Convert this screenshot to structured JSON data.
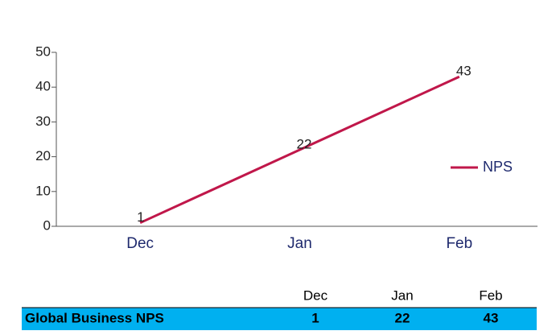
{
  "chart_data": {
    "type": "line",
    "categories": [
      "Dec",
      "Jan",
      "Feb"
    ],
    "series": [
      {
        "name": "NPS",
        "color": "#c0174a",
        "values": [
          1,
          22,
          43
        ]
      }
    ],
    "ylim": [
      0,
      50
    ],
    "yticks": [
      0,
      10,
      20,
      30,
      40,
      50
    ],
    "legend": "right"
  },
  "table": {
    "columns": [
      "Dec",
      "Jan",
      "Feb"
    ],
    "rows": [
      [
        "Global Business NPS",
        "1",
        "22",
        "43"
      ]
    ]
  }
}
